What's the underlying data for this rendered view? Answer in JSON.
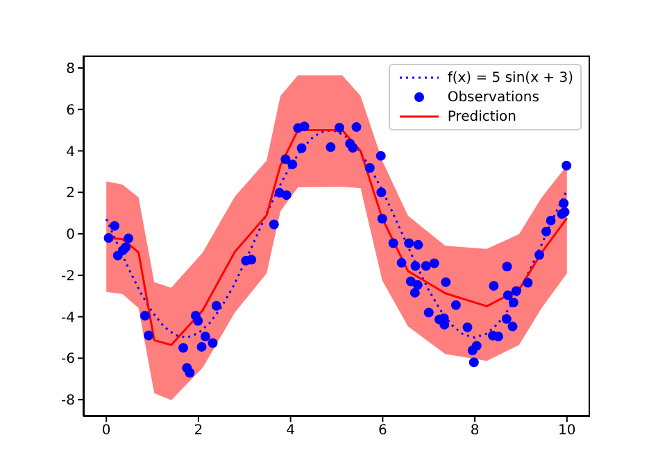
{
  "chart_data": {
    "type": "line",
    "xlim": [
      -0.5,
      10.5
    ],
    "xticks": [
      0,
      2,
      4,
      6,
      8,
      10
    ],
    "ylim": [
      -8.8,
      8.6
    ],
    "yticks": [
      -8,
      -6,
      -4,
      -2,
      0,
      2,
      4,
      6,
      8
    ],
    "legend": "top right",
    "series": [
      {
        "name": "f(x) = 5 sin(x + 3)",
        "color": "#0000ff",
        "line_style": "dotted",
        "marker": "none",
        "x": [
          0,
          0.25,
          0.5,
          0.75,
          1,
          1.25,
          1.5,
          1.75,
          2,
          2.25,
          2.5,
          2.75,
          3,
          3.25,
          3.5,
          3.75,
          4,
          4.25,
          4.5,
          4.75,
          5,
          5.25,
          5.5,
          5.75,
          6,
          6.25,
          6.5,
          6.75,
          7,
          7.25,
          7.5,
          7.75,
          8,
          8.25,
          8.5,
          8.75,
          9,
          9.25,
          9.5,
          9.75,
          10
        ],
        "values": [
          0.71,
          -0.54,
          -1.75,
          -2.86,
          -3.78,
          -4.47,
          -4.89,
          -5.0,
          -4.79,
          -4.29,
          -3.53,
          -2.56,
          -1.4,
          -0.17,
          1.08,
          2.26,
          3.28,
          4.11,
          4.69,
          4.98,
          4.95,
          4.62,
          3.99,
          3.1,
          2.06,
          0.86,
          -0.38,
          -1.6,
          -2.72,
          -3.67,
          -4.4,
          -4.86,
          -5.0,
          -4.82,
          -4.34,
          -3.59,
          -2.63,
          -1.49,
          -0.26,
          0.99,
          2.1
        ]
      },
      {
        "name": "Observations",
        "type": "scatter",
        "color": "#0000ff",
        "marker": "circle",
        "x": [
          0.05,
          0.18,
          0.25,
          0.36,
          0.42,
          0.48,
          0.84,
          0.92,
          1.67,
          1.75,
          1.81,
          1.94,
          1.99,
          2.07,
          2.15,
          2.31,
          2.39,
          3.03,
          3.15,
          3.64,
          3.76,
          3.91,
          3.89,
          4.04,
          4.24,
          4.16,
          4.3,
          4.87,
          5.06,
          5.29,
          5.35,
          5.43,
          5.72,
          5.96,
          5.97,
          5.99,
          6.23,
          6.41,
          6.57,
          6.77,
          6.71,
          6.61,
          6.7,
          6.76,
          6.94,
          7.12,
          7.0,
          7.23,
          7.33,
          7.34,
          7.37,
          7.59,
          7.84,
          7.95,
          8.04,
          7.98,
          8.39,
          8.51,
          8.41,
          8.7,
          8.72,
          8.69,
          8.82,
          8.84,
          8.9,
          9.15,
          9.4,
          9.55,
          9.65,
          9.89,
          9.93,
          9.95,
          9.99
        ],
        "values": [
          -0.2,
          0.38,
          -1.05,
          -0.8,
          -0.65,
          -0.22,
          -3.95,
          -4.9,
          -5.5,
          -6.47,
          -6.7,
          -3.95,
          -4.2,
          -5.45,
          -4.95,
          -5.27,
          -3.47,
          -1.3,
          -1.25,
          0.45,
          1.98,
          1.87,
          3.6,
          3.35,
          4.13,
          5.1,
          5.18,
          4.18,
          5.12,
          4.35,
          4.15,
          5.15,
          3.18,
          3.76,
          2.0,
          0.73,
          -0.45,
          -1.4,
          -0.45,
          -0.53,
          -1.55,
          -2.29,
          -2.84,
          -2.47,
          -1.55,
          -1.42,
          -3.8,
          -4.13,
          -4.07,
          -4.38,
          -2.33,
          -3.44,
          -4.51,
          -5.62,
          -5.4,
          -6.2,
          -4.91,
          -4.95,
          -2.51,
          -1.58,
          -2.96,
          -4.11,
          -4.47,
          -3.31,
          -2.76,
          -2.36,
          -1.02,
          0.11,
          0.64,
          0.95,
          1.47,
          1.05,
          3.29
        ]
      },
      {
        "name": "Prediction",
        "color": "#ff0000",
        "line_style": "solid",
        "marker": "none",
        "x": [
          0,
          0.35,
          0.7,
          1.04,
          1.41,
          2.09,
          2.79,
          3.48,
          3.78,
          4.16,
          5.12,
          5.52,
          5.99,
          6.55,
          7.36,
          8.26,
          8.96,
          9.45,
          10
        ],
        "values": [
          -0.2,
          -0.25,
          -0.9,
          -5.13,
          -5.36,
          -3.7,
          -0.87,
          0.9,
          3.3,
          5.0,
          5.0,
          4.0,
          0.75,
          -1.8,
          -2.87,
          -3.49,
          -2.69,
          -0.91,
          0.76
        ],
        "lower": [
          -2.8,
          -2.9,
          -3.58,
          -7.69,
          -8.02,
          -6.47,
          -3.8,
          -1.91,
          1.09,
          2.24,
          2.27,
          2.2,
          -2.25,
          -4.47,
          -5.8,
          -6.13,
          -5.36,
          -3.58,
          -1.91
        ],
        "upper": [
          2.53,
          2.38,
          1.76,
          -2.33,
          -2.6,
          -0.91,
          1.8,
          3.53,
          6.65,
          7.65,
          7.65,
          6.65,
          3.53,
          0.87,
          -0.58,
          -0.73,
          -0.02,
          1.75,
          3.3
        ]
      }
    ]
  }
}
